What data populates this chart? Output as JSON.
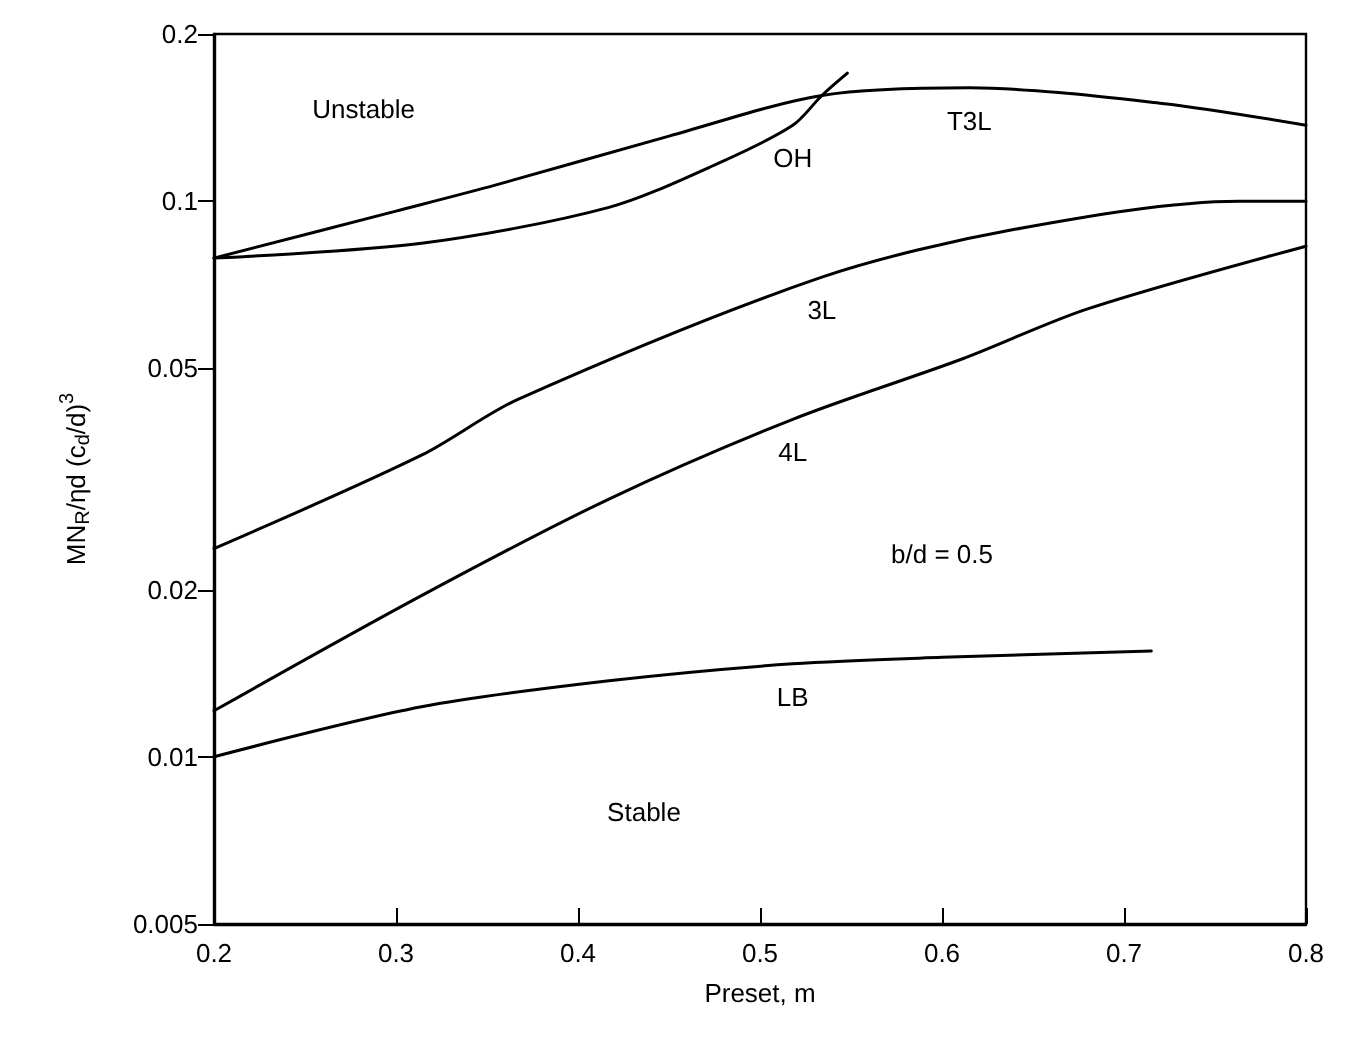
{
  "chart_data": {
    "type": "line",
    "xlabel": "Preset, m",
    "ylabel": "MN$_{R}$/ηd (c$_{d}$/d)$^{3}$",
    "annotations": [
      "Unstable",
      "Stable",
      "b/d = 0.5"
    ],
    "series": [
      {
        "name": "T3L",
        "color": "#000000",
        "x": [
          0.2,
          0.3,
          0.355,
          0.45,
          0.534,
          0.615,
          0.721,
          0.8
        ],
        "values": [
          0.079,
          0.096,
          0.107,
          0.131,
          0.155,
          0.16,
          0.15,
          0.137
        ]
      },
      {
        "name": "OH",
        "color": "#000000",
        "x": [
          0.2,
          0.314,
          0.417,
          0.477,
          0.518,
          0.534,
          0.548
        ],
        "values": [
          0.079,
          0.084,
          0.0975,
          0.117,
          0.137,
          0.155,
          0.17
        ]
      },
      {
        "name": "3L",
        "color": "#000000",
        "x": [
          0.2,
          0.314,
          0.367,
          0.534,
          0.64,
          0.763,
          0.8
        ],
        "values": [
          0.0237,
          0.0349,
          0.044,
          0.073,
          0.089,
          0.1,
          0.1
        ]
      },
      {
        "name": "4L",
        "color": "#000000",
        "x": [
          0.2,
          0.314,
          0.417,
          0.518,
          0.611,
          0.68,
          0.8
        ],
        "values": [
          0.0121,
          0.0195,
          0.0291,
          0.0405,
          0.052,
          0.064,
          0.083
        ]
      },
      {
        "name": "LB",
        "color": "#000000",
        "x": [
          0.2,
          0.314,
          0.417,
          0.518,
          0.6,
          0.715
        ],
        "values": [
          0.01,
          0.0123,
          0.0137,
          0.0147,
          0.0151,
          0.0155
        ]
      }
    ],
    "xlim": [
      0.2,
      0.8
    ],
    "xticks": [
      0.2,
      0.3,
      0.4,
      0.5,
      0.6,
      0.7,
      0.8
    ],
    "ylim": [
      0.005,
      0.2
    ],
    "yticks": [
      0.005,
      0.01,
      0.02,
      0.05,
      0.1,
      0.2
    ],
    "log": "y",
    "grid": false,
    "legend": false,
    "marker": "none",
    "line_style": "solid"
  }
}
